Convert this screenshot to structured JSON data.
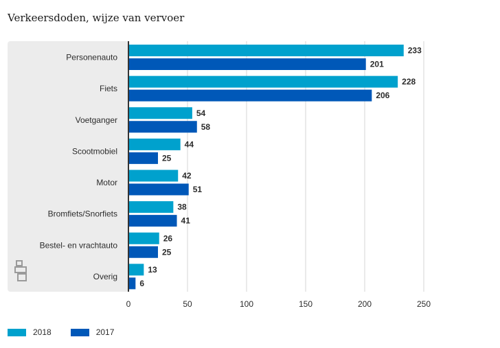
{
  "title": "Verkeersdoden, wijze van vervoer",
  "colors": {
    "series_2018": "#00a1cd",
    "series_2017": "#0058b8",
    "panel": "#ececec",
    "grid": "#d4d4d4",
    "axis": "#333333"
  },
  "logo_icon": "cbs-logo-icon",
  "chart_data": {
    "type": "bar",
    "orientation": "horizontal",
    "title": "Verkeersdoden, wijze van vervoer",
    "categories": [
      "Personenauto",
      "Fiets",
      "Voetganger",
      "Scootmobiel",
      "Motor",
      "Bromfiets/Snorfiets",
      "Bestel- en vrachtauto",
      "Overig"
    ],
    "series": [
      {
        "name": "2018",
        "values": [
          233,
          228,
          54,
          44,
          42,
          38,
          26,
          13
        ]
      },
      {
        "name": "2017",
        "values": [
          201,
          206,
          58,
          25,
          51,
          41,
          25,
          6
        ]
      }
    ],
    "xlim": [
      0,
      250
    ],
    "xticks": [
      "0",
      "50",
      "100",
      "150",
      "200",
      "250"
    ],
    "grid": true,
    "legend_position": "bottom-left"
  }
}
